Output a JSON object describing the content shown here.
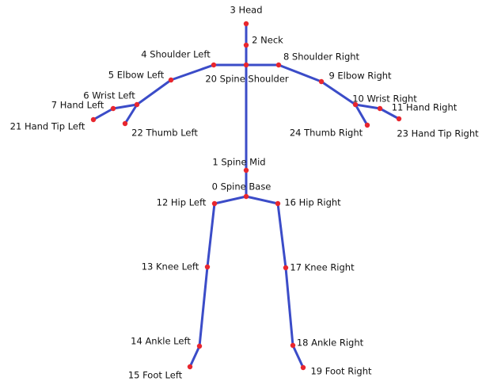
{
  "nodes": [
    {
      "label": "0 Spine Base"
    },
    {
      "label": "1 Spine Mid"
    },
    {
      "label": "2 Neck"
    },
    {
      "label": "3 Head"
    },
    {
      "label": "4 Shoulder Left"
    },
    {
      "label": "5 Elbow Left"
    },
    {
      "label": "6 Wrist Left"
    },
    {
      "label": "7 Hand Left"
    },
    {
      "label": "8 Shoulder Right"
    },
    {
      "label": "9 Elbow Right"
    },
    {
      "label": "10 Wrist Right"
    },
    {
      "label": "11 Hand Right"
    },
    {
      "label": "12 Hip Left"
    },
    {
      "label": "13 Knee Left"
    },
    {
      "label": "14 Ankle Left"
    },
    {
      "label": "15 Foot Left"
    },
    {
      "label": "16 Hip Right"
    },
    {
      "label": "17 Knee Right"
    },
    {
      "label": "18 Ankle Right"
    },
    {
      "label": "19 Foot Right"
    },
    {
      "label": "20 Spine Shoulder"
    },
    {
      "label": "21 Hand Tip Left"
    },
    {
      "label": "22 Thumb Left"
    },
    {
      "label": "23 Hand Tip Right"
    },
    {
      "label": "24 Thumb Right"
    }
  ]
}
